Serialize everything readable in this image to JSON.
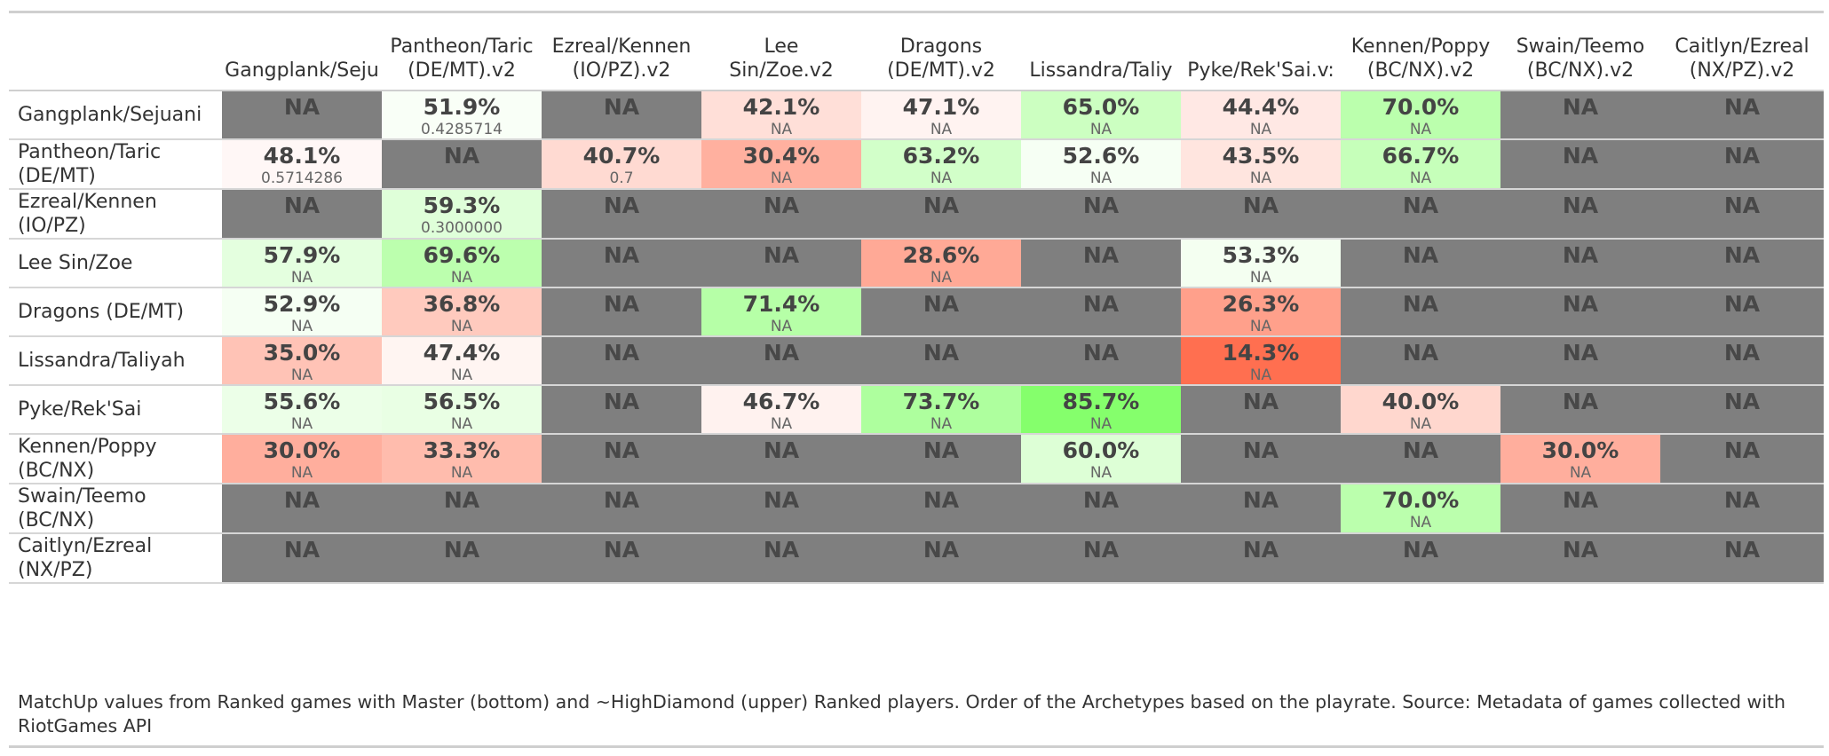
{
  "colors": {
    "na_fill": "#7f7f7f",
    "low": "#ff6e4f",
    "mid": "#ffffff",
    "high": "#84ff6b"
  },
  "table": {
    "columns": [
      "Gangplank/Seju",
      "Pantheon/Taric\n(DE/MT).v2",
      "Ezreal/Kennen\n(IO/PZ).v2",
      "Lee\nSin/Zoe.v2",
      "Dragons\n(DE/MT).v2",
      "Lissandra/Taliy",
      "Pyke/Rek'Sai.v:",
      "Kennen/Poppy\n(BC/NX).v2",
      "Swain/Teemo\n(BC/NX).v2",
      "Caitlyn/Ezreal\n(NX/PZ).v2"
    ],
    "rows": [
      {
        "label": "Gangplank/Sejuani",
        "cells": [
          {
            "text": "NA",
            "value": null,
            "sub": ""
          },
          {
            "text": "51.9%",
            "value": 51.9,
            "sub": "0.4285714"
          },
          {
            "text": "NA",
            "value": null,
            "sub": ""
          },
          {
            "text": "42.1%",
            "value": 42.1,
            "sub": "NA"
          },
          {
            "text": "47.1%",
            "value": 47.1,
            "sub": "NA"
          },
          {
            "text": "65.0%",
            "value": 65.0,
            "sub": "NA"
          },
          {
            "text": "44.4%",
            "value": 44.4,
            "sub": "NA"
          },
          {
            "text": "70.0%",
            "value": 70.0,
            "sub": "NA"
          },
          {
            "text": "NA",
            "value": null,
            "sub": ""
          },
          {
            "text": "NA",
            "value": null,
            "sub": ""
          }
        ]
      },
      {
        "label": "Pantheon/Taric\n(DE/MT)",
        "cells": [
          {
            "text": "48.1%",
            "value": 48.1,
            "sub": "0.5714286"
          },
          {
            "text": "NA",
            "value": null,
            "sub": ""
          },
          {
            "text": "40.7%",
            "value": 40.7,
            "sub": "0.7"
          },
          {
            "text": "30.4%",
            "value": 30.4,
            "sub": "NA"
          },
          {
            "text": "63.2%",
            "value": 63.2,
            "sub": "NA"
          },
          {
            "text": "52.6%",
            "value": 52.6,
            "sub": "NA"
          },
          {
            "text": "43.5%",
            "value": 43.5,
            "sub": "NA"
          },
          {
            "text": "66.7%",
            "value": 66.7,
            "sub": "NA"
          },
          {
            "text": "NA",
            "value": null,
            "sub": ""
          },
          {
            "text": "NA",
            "value": null,
            "sub": ""
          }
        ]
      },
      {
        "label": "Ezreal/Kennen\n(IO/PZ)",
        "cells": [
          {
            "text": "NA",
            "value": null,
            "sub": ""
          },
          {
            "text": "59.3%",
            "value": 59.3,
            "sub": "0.3000000"
          },
          {
            "text": "NA",
            "value": null,
            "sub": ""
          },
          {
            "text": "NA",
            "value": null,
            "sub": ""
          },
          {
            "text": "NA",
            "value": null,
            "sub": ""
          },
          {
            "text": "NA",
            "value": null,
            "sub": ""
          },
          {
            "text": "NA",
            "value": null,
            "sub": ""
          },
          {
            "text": "NA",
            "value": null,
            "sub": ""
          },
          {
            "text": "NA",
            "value": null,
            "sub": ""
          },
          {
            "text": "NA",
            "value": null,
            "sub": ""
          }
        ]
      },
      {
        "label": "Lee Sin/Zoe",
        "cells": [
          {
            "text": "57.9%",
            "value": 57.9,
            "sub": "NA"
          },
          {
            "text": "69.6%",
            "value": 69.6,
            "sub": "NA"
          },
          {
            "text": "NA",
            "value": null,
            "sub": ""
          },
          {
            "text": "NA",
            "value": null,
            "sub": ""
          },
          {
            "text": "28.6%",
            "value": 28.6,
            "sub": "NA"
          },
          {
            "text": "NA",
            "value": null,
            "sub": ""
          },
          {
            "text": "53.3%",
            "value": 53.3,
            "sub": "NA"
          },
          {
            "text": "NA",
            "value": null,
            "sub": ""
          },
          {
            "text": "NA",
            "value": null,
            "sub": ""
          },
          {
            "text": "NA",
            "value": null,
            "sub": ""
          }
        ]
      },
      {
        "label": "Dragons (DE/MT)",
        "cells": [
          {
            "text": "52.9%",
            "value": 52.9,
            "sub": "NA"
          },
          {
            "text": "36.8%",
            "value": 36.8,
            "sub": "NA"
          },
          {
            "text": "NA",
            "value": null,
            "sub": ""
          },
          {
            "text": "71.4%",
            "value": 71.4,
            "sub": "NA"
          },
          {
            "text": "NA",
            "value": null,
            "sub": ""
          },
          {
            "text": "NA",
            "value": null,
            "sub": ""
          },
          {
            "text": "26.3%",
            "value": 26.3,
            "sub": "NA"
          },
          {
            "text": "NA",
            "value": null,
            "sub": ""
          },
          {
            "text": "NA",
            "value": null,
            "sub": ""
          },
          {
            "text": "NA",
            "value": null,
            "sub": ""
          }
        ]
      },
      {
        "label": "Lissandra/Taliyah",
        "cells": [
          {
            "text": "35.0%",
            "value": 35.0,
            "sub": "NA"
          },
          {
            "text": "47.4%",
            "value": 47.4,
            "sub": "NA"
          },
          {
            "text": "NA",
            "value": null,
            "sub": ""
          },
          {
            "text": "NA",
            "value": null,
            "sub": ""
          },
          {
            "text": "NA",
            "value": null,
            "sub": ""
          },
          {
            "text": "NA",
            "value": null,
            "sub": ""
          },
          {
            "text": "14.3%",
            "value": 14.3,
            "sub": "NA"
          },
          {
            "text": "NA",
            "value": null,
            "sub": ""
          },
          {
            "text": "NA",
            "value": null,
            "sub": ""
          },
          {
            "text": "NA",
            "value": null,
            "sub": ""
          }
        ]
      },
      {
        "label": "Pyke/Rek'Sai",
        "cells": [
          {
            "text": "55.6%",
            "value": 55.6,
            "sub": "NA"
          },
          {
            "text": "56.5%",
            "value": 56.5,
            "sub": "NA"
          },
          {
            "text": "NA",
            "value": null,
            "sub": ""
          },
          {
            "text": "46.7%",
            "value": 46.7,
            "sub": "NA"
          },
          {
            "text": "73.7%",
            "value": 73.7,
            "sub": "NA"
          },
          {
            "text": "85.7%",
            "value": 85.7,
            "sub": "NA"
          },
          {
            "text": "NA",
            "value": null,
            "sub": ""
          },
          {
            "text": "40.0%",
            "value": 40.0,
            "sub": "NA"
          },
          {
            "text": "NA",
            "value": null,
            "sub": ""
          },
          {
            "text": "NA",
            "value": null,
            "sub": ""
          }
        ]
      },
      {
        "label": "Kennen/Poppy\n(BC/NX)",
        "cells": [
          {
            "text": "30.0%",
            "value": 30.0,
            "sub": "NA"
          },
          {
            "text": "33.3%",
            "value": 33.3,
            "sub": "NA"
          },
          {
            "text": "NA",
            "value": null,
            "sub": ""
          },
          {
            "text": "NA",
            "value": null,
            "sub": ""
          },
          {
            "text": "NA",
            "value": null,
            "sub": ""
          },
          {
            "text": "60.0%",
            "value": 60.0,
            "sub": "NA"
          },
          {
            "text": "NA",
            "value": null,
            "sub": ""
          },
          {
            "text": "NA",
            "value": null,
            "sub": ""
          },
          {
            "text": "30.0%",
            "value": 30.0,
            "sub": "NA"
          },
          {
            "text": "NA",
            "value": null,
            "sub": ""
          }
        ]
      },
      {
        "label": "Swain/Teemo\n(BC/NX)",
        "cells": [
          {
            "text": "NA",
            "value": null,
            "sub": ""
          },
          {
            "text": "NA",
            "value": null,
            "sub": ""
          },
          {
            "text": "NA",
            "value": null,
            "sub": ""
          },
          {
            "text": "NA",
            "value": null,
            "sub": ""
          },
          {
            "text": "NA",
            "value": null,
            "sub": ""
          },
          {
            "text": "NA",
            "value": null,
            "sub": ""
          },
          {
            "text": "NA",
            "value": null,
            "sub": ""
          },
          {
            "text": "70.0%",
            "value": 70.0,
            "sub": "NA"
          },
          {
            "text": "NA",
            "value": null,
            "sub": ""
          },
          {
            "text": "NA",
            "value": null,
            "sub": ""
          }
        ]
      },
      {
        "label": "Caitlyn/Ezreal\n(NX/PZ)",
        "cells": [
          {
            "text": "NA",
            "value": null,
            "sub": ""
          },
          {
            "text": "NA",
            "value": null,
            "sub": ""
          },
          {
            "text": "NA",
            "value": null,
            "sub": ""
          },
          {
            "text": "NA",
            "value": null,
            "sub": ""
          },
          {
            "text": "NA",
            "value": null,
            "sub": ""
          },
          {
            "text": "NA",
            "value": null,
            "sub": ""
          },
          {
            "text": "NA",
            "value": null,
            "sub": ""
          },
          {
            "text": "NA",
            "value": null,
            "sub": ""
          },
          {
            "text": "NA",
            "value": null,
            "sub": ""
          },
          {
            "text": "NA",
            "value": null,
            "sub": ""
          }
        ]
      }
    ]
  },
  "caption": "MatchUp values from Ranked games with Master (bottom) and ~HighDiamond (upper) Ranked players. Order of the Archetypes based on the playrate. Source: Metadata of games collected with\nRiotGames API"
}
